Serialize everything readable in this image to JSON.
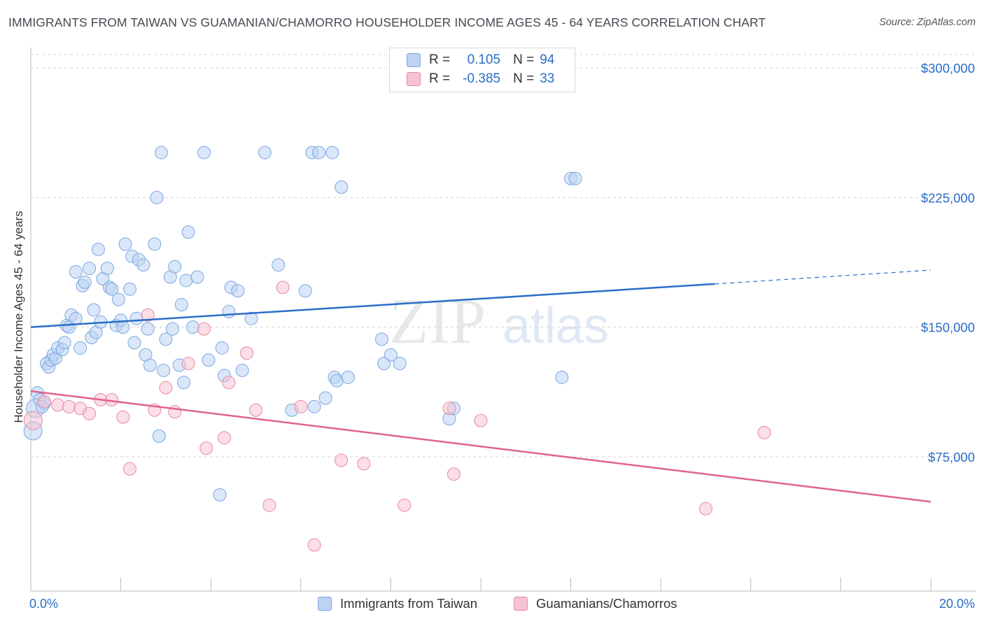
{
  "title": "IMMIGRANTS FROM TAIWAN VS GUAMANIAN/CHAMORRO HOUSEHOLDER INCOME AGES 45 - 64 YEARS CORRELATION CHART",
  "source": "Source: ZipAtlas.com",
  "watermark": {
    "zip": "ZIP",
    "atlas": "atlas"
  },
  "legend": {
    "r_label": "R =",
    "n_label": "N =",
    "series": [
      {
        "name": "Immigrants from Taiwan",
        "r": "0.105",
        "n": "94",
        "color": "#7aa6e0",
        "fill": "#bcd3f3"
      },
      {
        "name": "Guamanians/Chamorros",
        "r": "-0.385",
        "n": "33",
        "color": "#e68aa6",
        "fill": "#f7c3d2"
      }
    ]
  },
  "colors": {
    "blue_line": "#2a6ec8",
    "pink_line": "#e0628f",
    "axis_label": "#2a6ec8",
    "grid": "#d5d5d5"
  },
  "chart_data": {
    "type": "scatter",
    "title": "IMMIGRANTS FROM TAIWAN VS GUAMANIAN/CHAMORRO HOUSEHOLDER INCOME AGES 45 - 64 YEARS CORRELATION CHART",
    "xlabel": "",
    "ylabel": "Householder Income Ages 45 - 64 years",
    "xlim": [
      0,
      20
    ],
    "ylim": [
      0,
      305000
    ],
    "x_tick_labels": [
      "0.0%",
      "20.0%"
    ],
    "y_ticks": [
      75000,
      150000,
      225000,
      300000
    ],
    "y_tick_labels": [
      "$75,000",
      "$150,000",
      "$225,000",
      "$300,000"
    ],
    "grid": true,
    "legend_position": "top-center",
    "series": [
      {
        "name": "Immigrants from Taiwan",
        "trend": {
          "x": [
            0,
            15.2
          ],
          "y": [
            150000,
            175000
          ],
          "dashed_to": [
            20,
            183000
          ]
        },
        "points": [
          [
            0.05,
            90000
          ],
          [
            0.1,
            103000
          ],
          [
            0.15,
            112000
          ],
          [
            0.2,
            108000
          ],
          [
            0.3,
            106000
          ],
          [
            0.35,
            129000
          ],
          [
            0.4,
            127000
          ],
          [
            0.45,
            131000
          ],
          [
            0.5,
            134000
          ],
          [
            0.55,
            132000
          ],
          [
            0.6,
            138000
          ],
          [
            0.7,
            137000
          ],
          [
            0.75,
            141000
          ],
          [
            0.8,
            151000
          ],
          [
            0.85,
            150000
          ],
          [
            0.9,
            157000
          ],
          [
            1.0,
            155000
          ],
          [
            1.0,
            182000
          ],
          [
            1.1,
            138000
          ],
          [
            1.15,
            174000
          ],
          [
            1.2,
            176000
          ],
          [
            1.3,
            184000
          ],
          [
            1.35,
            144000
          ],
          [
            1.4,
            160000
          ],
          [
            1.45,
            147000
          ],
          [
            1.5,
            195000
          ],
          [
            1.55,
            153000
          ],
          [
            1.6,
            178000
          ],
          [
            1.7,
            184000
          ],
          [
            1.75,
            173000
          ],
          [
            1.8,
            172000
          ],
          [
            1.9,
            151000
          ],
          [
            1.95,
            166000
          ],
          [
            2.0,
            154000
          ],
          [
            2.05,
            150000
          ],
          [
            2.1,
            198000
          ],
          [
            2.2,
            172000
          ],
          [
            2.25,
            191000
          ],
          [
            2.3,
            141000
          ],
          [
            2.35,
            155000
          ],
          [
            2.4,
            189000
          ],
          [
            2.5,
            186000
          ],
          [
            2.55,
            134000
          ],
          [
            2.6,
            149000
          ],
          [
            2.65,
            128000
          ],
          [
            2.75,
            198000
          ],
          [
            2.8,
            225000
          ],
          [
            2.85,
            87000
          ],
          [
            2.9,
            251000
          ],
          [
            2.95,
            125000
          ],
          [
            3.0,
            143000
          ],
          [
            3.1,
            179000
          ],
          [
            3.15,
            149000
          ],
          [
            3.2,
            185000
          ],
          [
            3.3,
            128000
          ],
          [
            3.35,
            163000
          ],
          [
            3.4,
            118000
          ],
          [
            3.45,
            177000
          ],
          [
            3.5,
            205000
          ],
          [
            3.6,
            150000
          ],
          [
            3.7,
            179000
          ],
          [
            3.85,
            251000
          ],
          [
            3.95,
            131000
          ],
          [
            4.2,
            53000
          ],
          [
            4.25,
            138000
          ],
          [
            4.3,
            122000
          ],
          [
            4.4,
            159000
          ],
          [
            4.45,
            173000
          ],
          [
            4.6,
            171000
          ],
          [
            4.7,
            125000
          ],
          [
            4.9,
            155000
          ],
          [
            5.2,
            251000
          ],
          [
            5.5,
            186000
          ],
          [
            5.8,
            102000
          ],
          [
            6.1,
            171000
          ],
          [
            6.25,
            251000
          ],
          [
            6.3,
            104000
          ],
          [
            6.4,
            251000
          ],
          [
            6.55,
            109000
          ],
          [
            6.7,
            251000
          ],
          [
            6.75,
            121000
          ],
          [
            6.8,
            119000
          ],
          [
            6.9,
            231000
          ],
          [
            7.05,
            121000
          ],
          [
            7.8,
            143000
          ],
          [
            7.85,
            129000
          ],
          [
            8.0,
            134000
          ],
          [
            8.2,
            129000
          ],
          [
            9.3,
            97000
          ],
          [
            9.4,
            103000
          ],
          [
            11.8,
            121000
          ],
          [
            12.0,
            236000
          ],
          [
            12.1,
            236000
          ],
          [
            0.25,
            104000
          ]
        ]
      },
      {
        "name": "Guamanians/Chamorros",
        "trend": {
          "x": [
            0,
            20
          ],
          "y": [
            113000,
            49000
          ]
        },
        "points": [
          [
            0.05,
            96000
          ],
          [
            0.3,
            107000
          ],
          [
            0.6,
            105000
          ],
          [
            0.85,
            104000
          ],
          [
            1.1,
            103000
          ],
          [
            1.3,
            100000
          ],
          [
            1.55,
            108000
          ],
          [
            1.8,
            108000
          ],
          [
            2.05,
            98000
          ],
          [
            2.2,
            68000
          ],
          [
            2.6,
            157000
          ],
          [
            2.75,
            102000
          ],
          [
            3.0,
            115000
          ],
          [
            3.2,
            101000
          ],
          [
            3.5,
            129000
          ],
          [
            3.85,
            149000
          ],
          [
            3.9,
            80000
          ],
          [
            4.3,
            86000
          ],
          [
            4.4,
            118000
          ],
          [
            4.8,
            135000
          ],
          [
            5.0,
            102000
          ],
          [
            5.3,
            47000
          ],
          [
            5.6,
            173000
          ],
          [
            6.0,
            104000
          ],
          [
            6.3,
            24000
          ],
          [
            6.9,
            73000
          ],
          [
            7.4,
            71000
          ],
          [
            8.3,
            47000
          ],
          [
            9.3,
            103000
          ],
          [
            9.4,
            65000
          ],
          [
            10.0,
            96000
          ],
          [
            15.0,
            45000
          ],
          [
            16.3,
            89000
          ]
        ]
      }
    ]
  }
}
